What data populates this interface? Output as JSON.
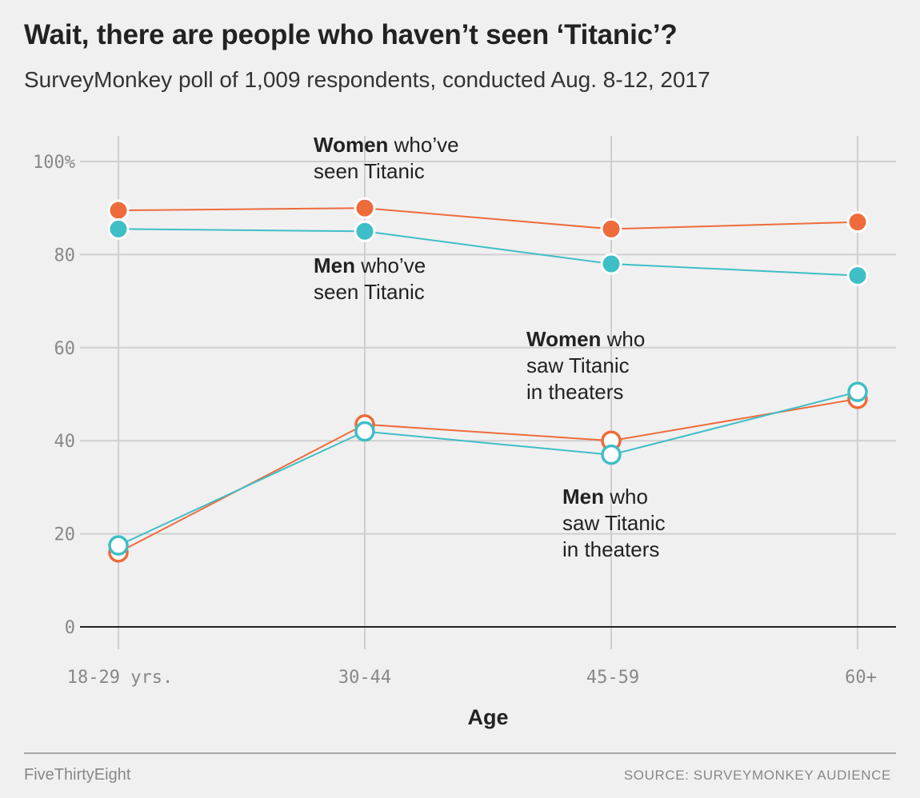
{
  "header": {
    "title": "Wait, there are people who haven’t seen ‘Titanic’?",
    "subtitle": "SurveyMonkey poll of 1,009 respondents, conducted Aug. 8-12, 2017"
  },
  "footer": {
    "brand": "FiveThirtyEight",
    "source": "SOURCE: SURVEYMONKEY AUDIENCE"
  },
  "colors": {
    "women": "#ee6b3b",
    "men": "#3ebec6",
    "background": "#f0f0f0",
    "grid": "#cfcfcf",
    "baseline": "#222222"
  },
  "chart_data": {
    "type": "line",
    "title": "Wait, there are people who haven’t seen ‘Titanic’?",
    "subtitle": "SurveyMonkey poll of 1,009 respondents, conducted Aug. 8-12, 2017",
    "xlabel": "Age",
    "ylabel": "",
    "categories": [
      "18-29 yrs.",
      "30-44",
      "45-59",
      "60+"
    ],
    "ylim": [
      0,
      100
    ],
    "yticks": [
      0,
      20,
      40,
      60,
      80,
      100
    ],
    "ytick_labels": [
      "0",
      "20",
      "40",
      "60",
      "80",
      "100%"
    ],
    "grid": true,
    "series": [
      {
        "key": "women_seen",
        "color": "#ee6b3b",
        "marker": "filled",
        "values": [
          89.5,
          90,
          85.5,
          87
        ]
      },
      {
        "key": "men_seen",
        "color": "#3ebec6",
        "marker": "filled",
        "values": [
          85.5,
          85,
          78,
          75.5
        ]
      },
      {
        "key": "women_theaters",
        "color": "#ee6b3b",
        "marker": "hollow",
        "values": [
          16,
          43.5,
          40,
          49
        ]
      },
      {
        "key": "men_theaters",
        "color": "#3ebec6",
        "marker": "hollow",
        "values": [
          17.5,
          42,
          37,
          50.5
        ]
      }
    ],
    "annotations": [
      {
        "series": "women_seen",
        "bold": "Women",
        "lines": [
          " who’ve",
          "seen Titanic"
        ]
      },
      {
        "series": "men_seen",
        "bold": "Men",
        "lines": [
          " who’ve",
          "seen Titanic"
        ]
      },
      {
        "series": "women_theaters",
        "bold": "Women",
        "lines": [
          " who",
          "saw Titanic",
          "in theaters"
        ]
      },
      {
        "series": "men_theaters",
        "bold": "Men",
        "lines": [
          " who",
          "saw Titanic",
          "in theaters"
        ]
      }
    ]
  }
}
